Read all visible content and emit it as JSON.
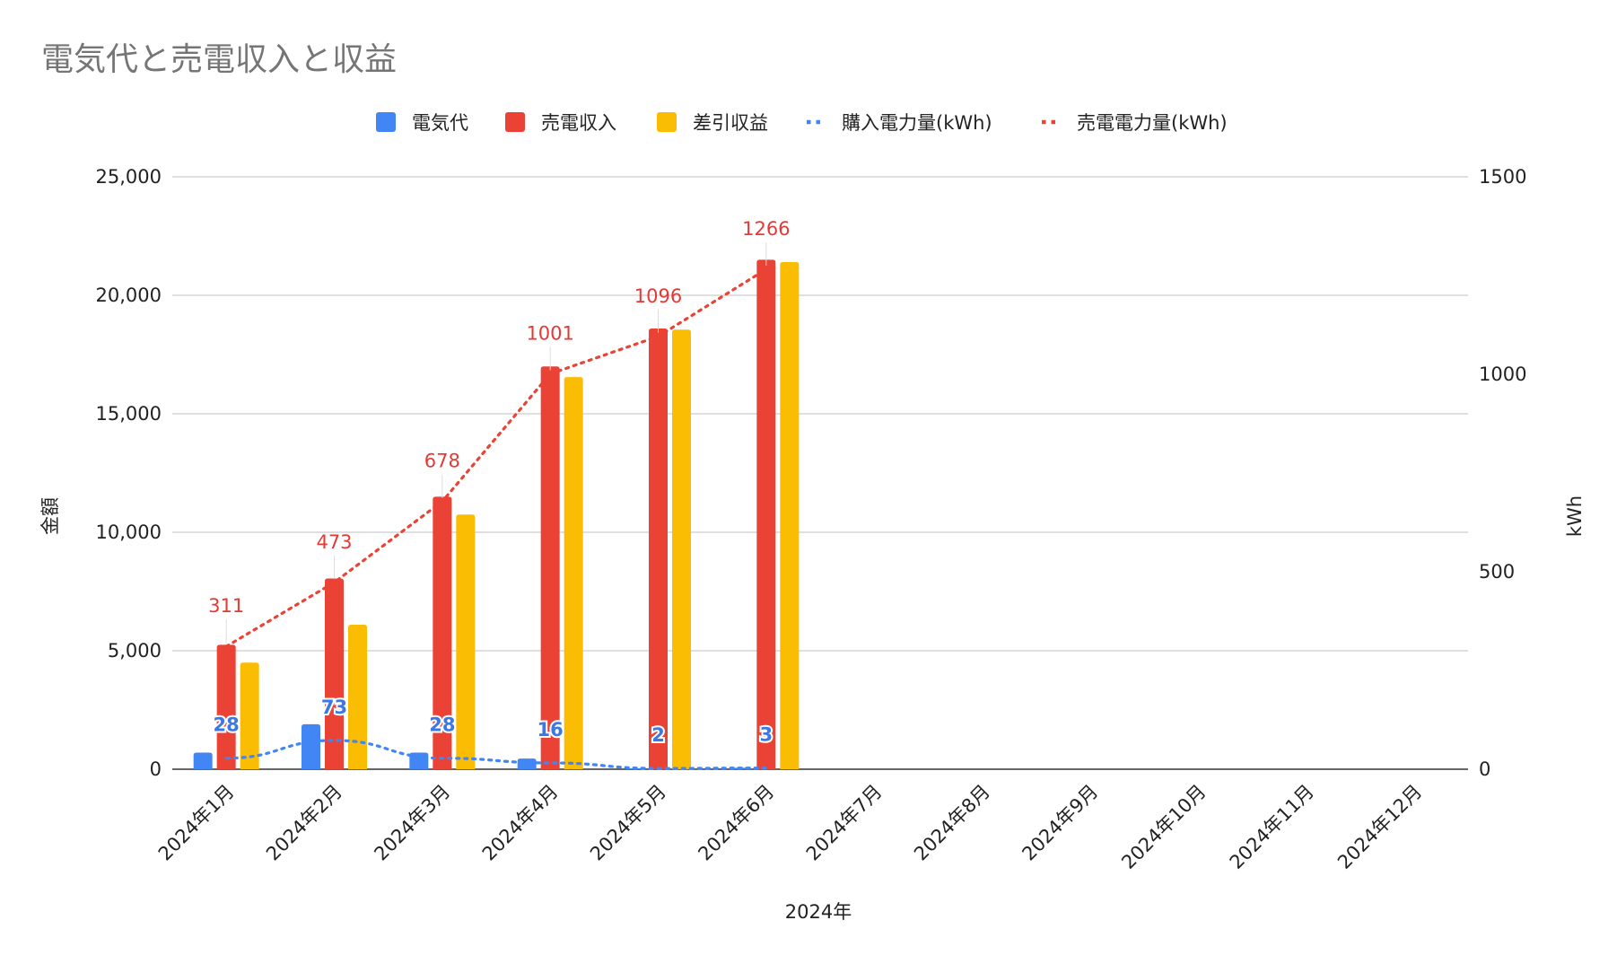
{
  "chart_data": {
    "type": "bar",
    "title": "電気代と売電収入と収益",
    "xlabel": "2024年",
    "ylabel": "金額",
    "y2label": "kWh",
    "categories": [
      "2024年1月",
      "2024年2月",
      "2024年3月",
      "2024年4月",
      "2024年5月",
      "2024年6月",
      "2024年7月",
      "2024年8月",
      "2024年9月",
      "2024年10月",
      "2024年11月",
      "2024年12月"
    ],
    "ylim": [
      0,
      25000
    ],
    "y_ticks": [
      "0",
      "5,000",
      "10,000",
      "15,000",
      "20,000",
      "25,000"
    ],
    "y2lim": [
      0,
      1500
    ],
    "y2_ticks": [
      "0",
      "500",
      "1000",
      "1500"
    ],
    "grid": true,
    "legend_position": "top",
    "bar_series": [
      {
        "name": "電気代",
        "color": "#4285f4",
        "values": [
          700,
          1900,
          700,
          450,
          40,
          60,
          null,
          null,
          null,
          null,
          null,
          null
        ]
      },
      {
        "name": "売電収入",
        "color": "#ea4335",
        "values": [
          5250,
          8050,
          11500,
          17000,
          18600,
          21500,
          null,
          null,
          null,
          null,
          null,
          null
        ]
      },
      {
        "name": "差引収益",
        "color": "#fbbc04",
        "values": [
          4500,
          6100,
          10750,
          16550,
          18550,
          21400,
          null,
          null,
          null,
          null,
          null,
          null
        ]
      }
    ],
    "line_series": [
      {
        "name": "購入電力量(kWh)",
        "color": "#4285f4",
        "axis": "right",
        "style": "dotted",
        "values": [
          28,
          73,
          28,
          16,
          2,
          3,
          null,
          null,
          null,
          null,
          null,
          null
        ]
      },
      {
        "name": "売電電力量(kWh)",
        "color": "#ea4335",
        "axis": "right",
        "style": "dotted",
        "values": [
          311,
          473,
          678,
          1001,
          1096,
          1266,
          null,
          null,
          null,
          null,
          null,
          null
        ]
      }
    ]
  }
}
